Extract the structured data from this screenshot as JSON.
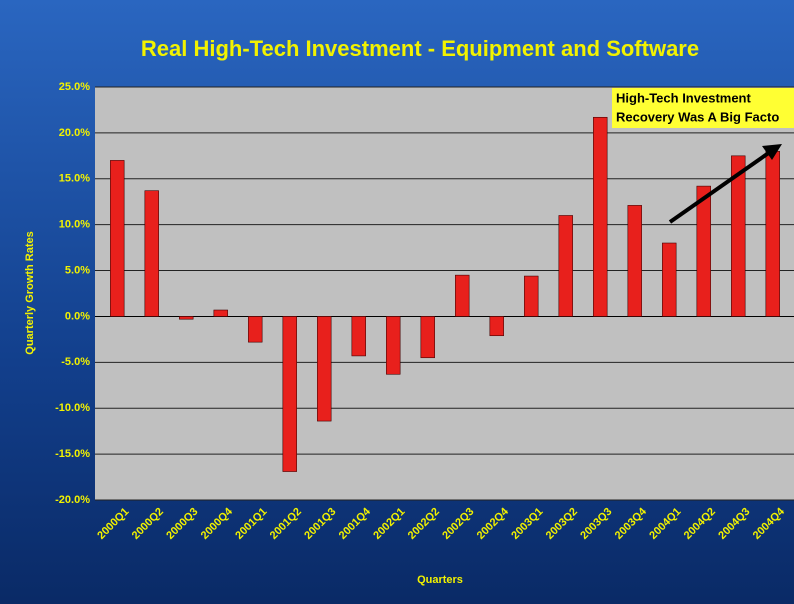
{
  "chart_data": {
    "type": "bar",
    "title": "Real High-Tech Investment - Equipment and  Software",
    "y_axis_label": "Quarterly Growth Rates",
    "x_axis_label": "Quarters",
    "annotation": [
      "High-Tech Investment",
      "Recovery Was A Big Facto"
    ],
    "categories": [
      "2000Q1",
      "2000Q2",
      "2000Q3",
      "2000Q4",
      "2001Q1",
      "2001Q2",
      "2001Q3",
      "2001Q4",
      "2002Q1",
      "2002Q2",
      "2002Q3",
      "2002Q4",
      "2003Q1",
      "2003Q2",
      "2003Q3",
      "2003Q4",
      "2004Q1",
      "2004Q2",
      "2004Q3",
      "2004Q4"
    ],
    "values": [
      17.0,
      13.7,
      -0.3,
      0.7,
      -2.8,
      -16.9,
      -11.4,
      -4.3,
      -6.3,
      -4.5,
      4.5,
      -2.1,
      4.4,
      11.0,
      21.7,
      12.1,
      8.0,
      14.2,
      17.5,
      18.0
    ],
    "color": "#e8201c",
    "ylim": [
      -20,
      25
    ],
    "yticks": [
      {
        "value": -20,
        "label": "-20.0%"
      },
      {
        "value": -15,
        "label": "-15.0%"
      },
      {
        "value": -10,
        "label": "-10.0%"
      },
      {
        "value": -5,
        "label": "-5.0%"
      },
      {
        "value": 0,
        "label": "0.0%"
      },
      {
        "value": 5,
        "label": "5.0%"
      },
      {
        "value": 10,
        "label": "10.0%"
      },
      {
        "value": 15,
        "label": "15.0%"
      },
      {
        "value": 20,
        "label": "20.0%"
      },
      {
        "value": 25,
        "label": "25.0%"
      }
    ],
    "grid": true
  }
}
